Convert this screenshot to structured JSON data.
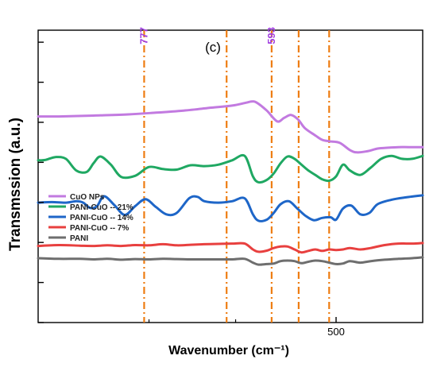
{
  "chart_data": {
    "type": "line",
    "panel_label": "(c)",
    "xlabel": "Wavenumber (cm⁻¹)",
    "ylabel": "Transmssion (a.u.)",
    "x_ticks": [
      {
        "value": 500,
        "label": "500"
      }
    ],
    "xlim": [
      930,
      375
    ],
    "ylim": [
      0,
      100
    ],
    "grid": false,
    "legend_position": "left",
    "series": [
      {
        "name": "CuO NPs",
        "color": "#c27ae0",
        "x": [
          930,
          900,
          850,
          800,
          760,
          720,
          680,
          650,
          630,
          622,
          615,
          600,
          585,
          575,
          565,
          555,
          545,
          530,
          520,
          510,
          495,
          480,
          470,
          455,
          440,
          425,
          410,
          395,
          375
        ],
        "y": [
          70.5,
          70.5,
          70.8,
          71.2,
          71.8,
          72.5,
          73.5,
          74.2,
          75.2,
          75.6,
          75.3,
          72.5,
          68.8,
          70.0,
          71.0,
          69.5,
          66.5,
          64.0,
          62.5,
          62.0,
          61.5,
          59.0,
          58.2,
          58.6,
          59.5,
          59.8,
          60.0,
          60.0,
          60.0
        ]
      },
      {
        "name": "PANI-CuO -- 21%",
        "color": "#1fa862",
        "x": [
          930,
          920,
          905,
          890,
          875,
          860,
          850,
          840,
          825,
          810,
          790,
          770,
          750,
          730,
          710,
          690,
          670,
          650,
          632,
          620,
          612,
          600,
          590,
          580,
          570,
          560,
          550,
          540,
          530,
          520,
          510,
          500,
          490,
          480,
          465,
          450,
          435,
          420,
          405,
          390,
          375
        ],
        "y": [
          55.5,
          55.6,
          56.6,
          56.0,
          52.0,
          51.5,
          54.5,
          56.8,
          54.0,
          49.8,
          50.2,
          53.2,
          52.5,
          52.3,
          53.8,
          53.5,
          54.0,
          55.5,
          57.0,
          50.0,
          48.0,
          48.8,
          51.0,
          54.5,
          56.8,
          56.0,
          54.0,
          52.0,
          50.5,
          49.0,
          48.5,
          50.0,
          54.0,
          52.0,
          50.5,
          53.0,
          56.0,
          57.0,
          56.0,
          56.0,
          57.0
        ]
      },
      {
        "name": "PANI-CuO -- 14%",
        "color": "#1e66c8",
        "x": [
          930,
          910,
          890,
          875,
          865,
          855,
          845,
          835,
          820,
          805,
          790,
          775,
          760,
          745,
          730,
          712,
          700,
          690,
          670,
          650,
          632,
          620,
          612,
          600,
          590,
          580,
          568,
          556,
          544,
          532,
          520,
          508,
          500,
          490,
          478,
          465,
          452,
          440,
          420,
          400,
          375
        ],
        "y": [
          41.0,
          41.2,
          41.0,
          41.5,
          41.0,
          39.2,
          39.8,
          43.2,
          40.2,
          36.8,
          39.8,
          42.2,
          39.5,
          37.0,
          37.5,
          42.5,
          43.0,
          41.5,
          41.0,
          41.5,
          42.5,
          37.0,
          34.8,
          35.2,
          37.5,
          40.5,
          41.5,
          39.0,
          36.5,
          35.0,
          35.8,
          36.0,
          35.2,
          39.0,
          40.0,
          37.0,
          37.5,
          40.5,
          42.0,
          42.8,
          43.5
        ]
      },
      {
        "name": "PANI-CuO -- 7%",
        "color": "#e8403f",
        "x": [
          930,
          900,
          870,
          850,
          830,
          810,
          790,
          770,
          750,
          730,
          710,
          690,
          670,
          650,
          632,
          620,
          612,
          600,
          590,
          580,
          570,
          560,
          550,
          540,
          530,
          520,
          510,
          500,
          490,
          480,
          465,
          450,
          430,
          410,
          390,
          375
        ],
        "y": [
          26.2,
          26.5,
          26.3,
          26.2,
          26.4,
          26.2,
          26.5,
          26.4,
          26.8,
          26.4,
          26.6,
          26.8,
          26.9,
          27.0,
          27.0,
          25.0,
          24.2,
          24.6,
          25.5,
          26.0,
          26.0,
          25.0,
          24.0,
          24.5,
          25.0,
          24.5,
          25.0,
          24.8,
          25.0,
          25.5,
          25.0,
          25.5,
          26.5,
          27.0,
          27.0,
          27.2
        ]
      },
      {
        "name": "PANI",
        "color": "#6e6e6e",
        "x": [
          930,
          900,
          870,
          850,
          830,
          810,
          790,
          770,
          750,
          730,
          710,
          690,
          670,
          650,
          632,
          620,
          612,
          600,
          590,
          580,
          570,
          560,
          550,
          540,
          530,
          520,
          510,
          500,
          490,
          480,
          465,
          450,
          430,
          410,
          390,
          375
        ],
        "y": [
          22.0,
          21.8,
          21.8,
          21.6,
          21.8,
          21.5,
          21.7,
          21.6,
          21.8,
          21.7,
          21.6,
          21.6,
          21.6,
          21.6,
          21.8,
          20.5,
          19.8,
          20.0,
          20.2,
          21.0,
          21.2,
          21.0,
          20.3,
          20.8,
          21.2,
          21.0,
          20.5,
          20.0,
          20.2,
          21.0,
          20.5,
          21.0,
          21.5,
          21.8,
          22.0,
          22.3
        ]
      }
    ],
    "reference_lines": [
      {
        "x": 777,
        "label": "777"
      },
      {
        "x": 658,
        "label": ""
      },
      {
        "x": 593,
        "label": "593"
      },
      {
        "x": 554,
        "label": ""
      },
      {
        "x": 510,
        "label": ""
      }
    ],
    "reference_line_color": "#ee7d12",
    "reference_label_color": "#a03de0"
  }
}
